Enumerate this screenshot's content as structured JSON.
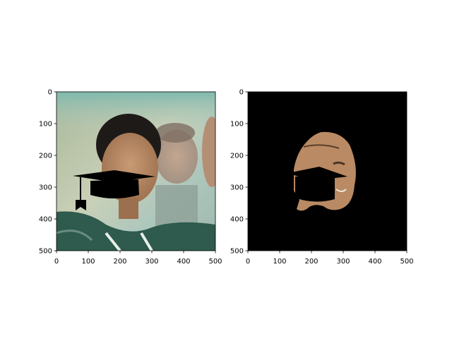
{
  "figure": {
    "background": "#ffffff",
    "panels": [
      {
        "id": "left",
        "content": "photo of smiling woman with wet dark hair and a black graduation-cap overlay on her face",
        "overlay_icon": "graduation-cap-icon",
        "xlim": [
          0,
          500
        ],
        "ylim": [
          0,
          500
        ],
        "y_inverted": true,
        "x_ticks": [
          "0",
          "100",
          "200",
          "300",
          "400",
          "500"
        ],
        "y_ticks": [
          "0",
          "100",
          "200",
          "300",
          "400",
          "500"
        ]
      },
      {
        "id": "right",
        "content": "segmentation mask: black background with only the face region visible, cap area blacked out",
        "xlim": [
          0,
          500
        ],
        "ylim": [
          0,
          500
        ],
        "y_inverted": true,
        "x_ticks": [
          "0",
          "100",
          "200",
          "300",
          "400",
          "500"
        ],
        "y_ticks": [
          "0",
          "100",
          "200",
          "300",
          "400",
          "500"
        ]
      }
    ],
    "colors": {
      "mask_background": "#000000",
      "cap": "#000000",
      "skin": "#b98a63",
      "jersey": "#2f5a4e",
      "hair": "#1e1a18"
    }
  }
}
